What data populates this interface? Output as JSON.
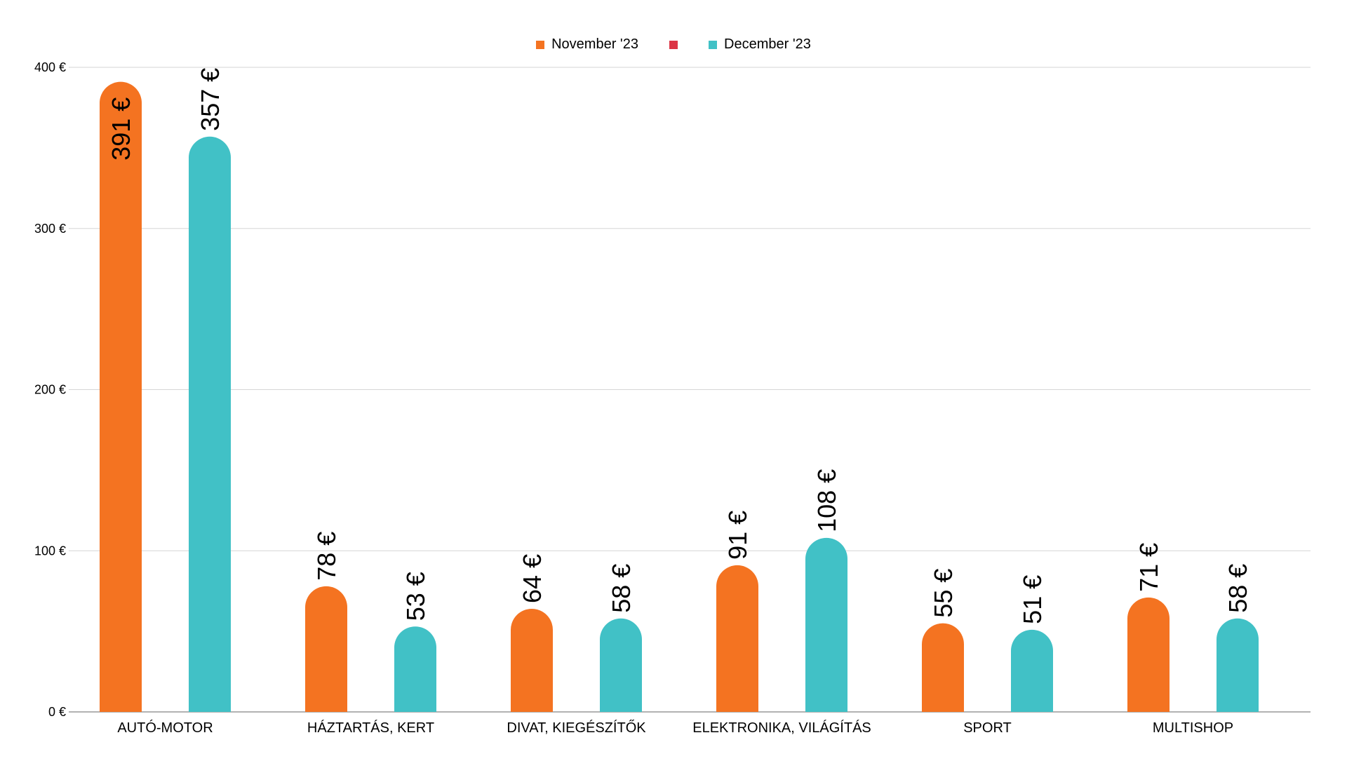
{
  "chart_data": {
    "type": "bar",
    "title": "",
    "xlabel": "",
    "ylabel": "",
    "ylim": [
      0,
      400
    ],
    "yticks": [
      {
        "value": 0,
        "label": "0 €"
      },
      {
        "value": 100,
        "label": "100 €"
      },
      {
        "value": 200,
        "label": "200 €"
      },
      {
        "value": 300,
        "label": "300 €"
      },
      {
        "value": 400,
        "label": "400 €"
      }
    ],
    "categories": [
      "AUTÓ-MOTOR",
      "HÁZTARTÁS, KERT",
      "DIVAT, KIEGÉSZÍTŐK",
      "ELEKTRONIKA, VILÁGÍTÁS",
      "SPORT",
      "MULTISHOP"
    ],
    "series": [
      {
        "name": "November '23",
        "color": "#f47321",
        "values": [
          391,
          78,
          64,
          91,
          55,
          71
        ],
        "labels": [
          "391 €",
          "78 €",
          "64 €",
          "91 €",
          "55 €",
          "71 €"
        ]
      },
      {
        "name": "December '23",
        "color": "#41c1c6",
        "values": [
          357,
          53,
          58,
          108,
          51,
          58
        ],
        "labels": [
          "357 €",
          "53 €",
          "58 €",
          "108 €",
          "51 €",
          "58 €"
        ]
      }
    ],
    "legend": {
      "position": "top-center",
      "items": [
        {
          "name": "November '23",
          "color": "#f47321"
        },
        {
          "name": "",
          "color": "#dc3545"
        },
        {
          "name": "December '23",
          "color": "#41c1c6"
        }
      ]
    },
    "grid": true
  }
}
